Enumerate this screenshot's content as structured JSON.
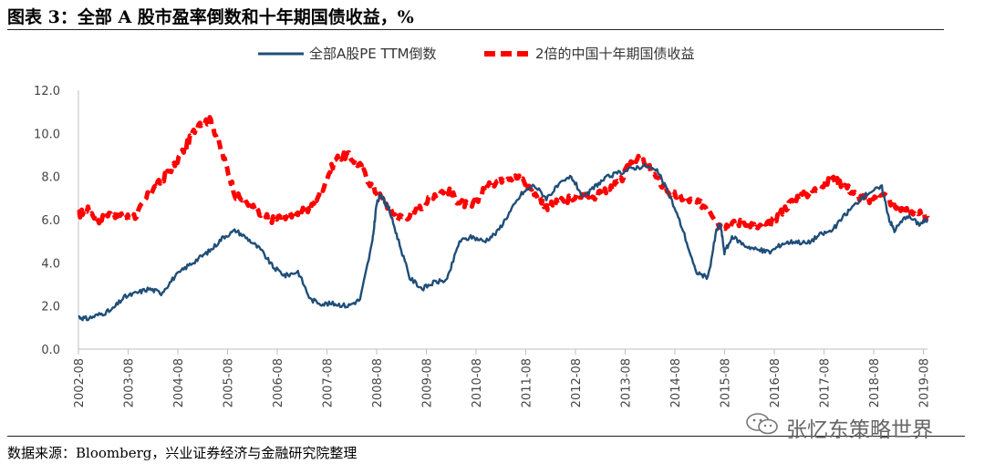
{
  "title": "图表 3：全部 A 股市盈率倒数和十年期国债收益，%",
  "source": "数据来源：Bloomberg，兴业证券经济与金融研究院整理",
  "watermark": "张忆东策略世界",
  "colors": {
    "series_a": "#1F4E79",
    "series_b": "#FF0000",
    "axis": "#BFBFBF"
  },
  "chart_data": {
    "type": "line",
    "ylim": [
      0,
      12
    ],
    "yticks": [
      "0.0",
      "2.0",
      "4.0",
      "6.0",
      "8.0",
      "10.0",
      "12.0"
    ],
    "ytick_values": [
      0,
      2,
      4,
      6,
      8,
      10,
      12
    ],
    "xticks": [
      "2002-08",
      "2003-08",
      "2004-08",
      "2005-08",
      "2006-08",
      "2007-08",
      "2008-08",
      "2009-08",
      "2010-08",
      "2011-08",
      "2012-08",
      "2013-08",
      "2014-08",
      "2015-08",
      "2016-08",
      "2017-08",
      "2018-08",
      "2019-08"
    ],
    "xlim": [
      2002.583,
      2019.667
    ],
    "legend_position": "top-center",
    "series": [
      {
        "name": "全部A股PE TTM倒数",
        "style": "solid",
        "x": [
          2002.583,
          2002.75,
          2003.0,
          2003.25,
          2003.5,
          2003.75,
          2004.0,
          2004.25,
          2004.5,
          2004.75,
          2005.0,
          2005.25,
          2005.5,
          2005.75,
          2006.0,
          2006.25,
          2006.5,
          2006.75,
          2007.0,
          2007.25,
          2007.5,
          2007.75,
          2008.0,
          2008.25,
          2008.5,
          2008.58,
          2008.67,
          2008.75,
          2008.83,
          2009.0,
          2009.25,
          2009.5,
          2009.75,
          2010.0,
          2010.25,
          2010.5,
          2010.75,
          2011.0,
          2011.25,
          2011.5,
          2011.75,
          2012.0,
          2012.25,
          2012.5,
          2012.75,
          2013.0,
          2013.25,
          2013.5,
          2013.75,
          2014.0,
          2014.25,
          2014.5,
          2014.75,
          2015.0,
          2015.25,
          2015.42,
          2015.5,
          2015.58,
          2015.75,
          2016.0,
          2016.25,
          2016.5,
          2016.75,
          2017.0,
          2017.25,
          2017.5,
          2017.75,
          2018.0,
          2018.25,
          2018.5,
          2018.75,
          2018.9,
          2019.0,
          2019.25,
          2019.5,
          2019.667
        ],
        "y": [
          1.5,
          1.4,
          1.6,
          1.8,
          2.4,
          2.6,
          2.8,
          2.6,
          3.3,
          3.8,
          4.2,
          4.6,
          5.2,
          5.5,
          5.1,
          4.6,
          3.8,
          3.4,
          3.6,
          2.3,
          2.1,
          2.1,
          2.0,
          2.3,
          5.0,
          6.7,
          7.2,
          6.8,
          6.5,
          5.2,
          3.3,
          2.8,
          3.1,
          3.2,
          5.0,
          5.2,
          5.0,
          5.4,
          6.3,
          7.2,
          7.6,
          7.0,
          7.6,
          8.0,
          7.0,
          7.6,
          8.0,
          8.2,
          8.4,
          8.5,
          8.2,
          7.0,
          5.5,
          3.6,
          3.3,
          5.5,
          5.8,
          4.5,
          5.2,
          4.8,
          4.6,
          4.5,
          4.9,
          5.0,
          4.9,
          5.3,
          5.5,
          6.2,
          6.8,
          7.3,
          7.5,
          6.0,
          5.5,
          6.2,
          5.8,
          6.0
        ]
      },
      {
        "name": "2倍的中国十年期国债收益",
        "style": "dashed",
        "x": [
          2002.583,
          2002.75,
          2003.0,
          2003.25,
          2003.5,
          2003.75,
          2004.0,
          2004.25,
          2004.5,
          2004.75,
          2005.0,
          2005.25,
          2005.5,
          2005.75,
          2006.0,
          2006.25,
          2006.5,
          2006.75,
          2007.0,
          2007.25,
          2007.5,
          2007.75,
          2008.0,
          2008.25,
          2008.5,
          2008.75,
          2009.0,
          2009.25,
          2009.5,
          2009.75,
          2010.0,
          2010.25,
          2010.5,
          2010.75,
          2011.0,
          2011.25,
          2011.5,
          2011.75,
          2012.0,
          2012.25,
          2012.5,
          2012.75,
          2013.0,
          2013.25,
          2013.5,
          2013.75,
          2014.0,
          2014.25,
          2014.5,
          2014.75,
          2015.0,
          2015.25,
          2015.5,
          2015.75,
          2016.0,
          2016.25,
          2016.5,
          2016.75,
          2017.0,
          2017.25,
          2017.5,
          2017.75,
          2018.0,
          2018.25,
          2018.5,
          2018.75,
          2019.0,
          2019.25,
          2019.5,
          2019.667
        ],
        "y": [
          6.2,
          6.5,
          6.0,
          6.3,
          6.1,
          6.2,
          7.2,
          7.8,
          8.5,
          9.4,
          10.5,
          10.6,
          8.9,
          7.1,
          6.8,
          6.2,
          6.0,
          6.2,
          6.3,
          6.5,
          7.5,
          8.8,
          9.0,
          8.5,
          7.5,
          6.8,
          6.1,
          6.2,
          6.6,
          7.2,
          7.4,
          6.8,
          6.6,
          7.4,
          7.8,
          8.0,
          7.9,
          7.3,
          6.6,
          6.8,
          7.0,
          7.1,
          7.1,
          7.4,
          7.8,
          8.9,
          8.6,
          7.8,
          7.2,
          7.0,
          6.8,
          6.6,
          5.7,
          5.8,
          5.9,
          5.6,
          5.8,
          6.4,
          7.0,
          7.2,
          7.5,
          7.9,
          7.6,
          7.1,
          6.9,
          7.3,
          6.6,
          6.4,
          6.3,
          6.1
        ]
      }
    ]
  }
}
